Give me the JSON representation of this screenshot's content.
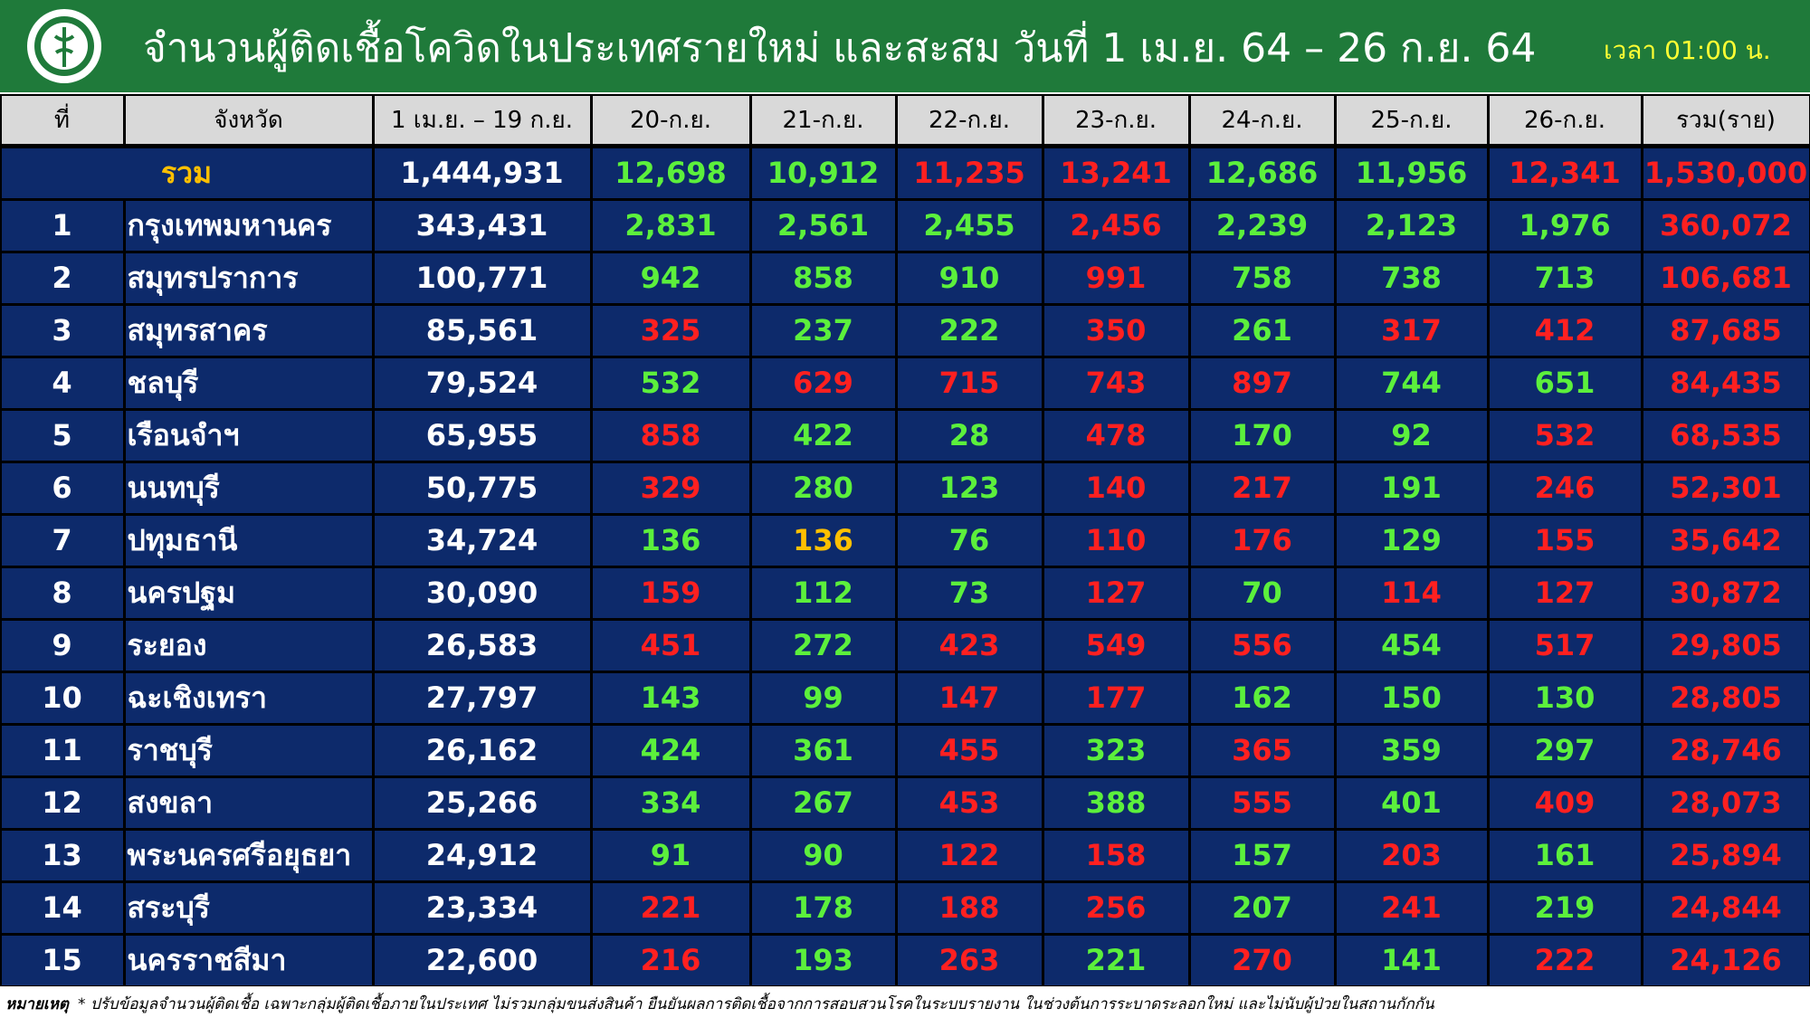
{
  "header": {
    "title": "จำนวนผู้ติดเชื้อโควิดในประเทศรายใหม่ และสะสม วันที่ 1 เม.ย. 64 – 26 ก.ย. 64",
    "time": "เวลา 01:00 น."
  },
  "table": {
    "columns": [
      "ที่",
      "จังหวัด",
      "1 เม.ย. – 19 ก.ย.",
      "20-ก.ย.",
      "21-ก.ย.",
      "22-ก.ย.",
      "23-ก.ย.",
      "24-ก.ย.",
      "25-ก.ย.",
      "26-ก.ย.",
      "รวม(ราย)"
    ],
    "total": {
      "label": "รวม",
      "cells": [
        "1,444,931",
        "12,698",
        "10,912",
        "11,235",
        "13,241",
        "12,686",
        "11,956",
        "12,341",
        "1,530,000"
      ],
      "colors": [
        "#ffffff",
        "#5cf03c",
        "#5cf03c",
        "#ff2020",
        "#ff2020",
        "#5cf03c",
        "#5cf03c",
        "#ff2020",
        "#ff2020"
      ]
    },
    "rows": [
      {
        "rank": 1,
        "province": "กรุงเทพมหานคร",
        "cells": [
          "343,431",
          "2,831",
          "2,561",
          "2,455",
          "2,456",
          "2,239",
          "2,123",
          "1,976",
          "360,072"
        ],
        "colors": [
          "#ffffff",
          "#5cf03c",
          "#5cf03c",
          "#5cf03c",
          "#ff2020",
          "#5cf03c",
          "#5cf03c",
          "#5cf03c",
          "#ff2020"
        ]
      },
      {
        "rank": 2,
        "province": "สมุทรปราการ",
        "cells": [
          "100,771",
          "942",
          "858",
          "910",
          "991",
          "758",
          "738",
          "713",
          "106,681"
        ],
        "colors": [
          "#ffffff",
          "#5cf03c",
          "#5cf03c",
          "#5cf03c",
          "#ff2020",
          "#5cf03c",
          "#5cf03c",
          "#5cf03c",
          "#ff2020"
        ]
      },
      {
        "rank": 3,
        "province": "สมุทรสาคร",
        "cells": [
          "85,561",
          "325",
          "237",
          "222",
          "350",
          "261",
          "317",
          "412",
          "87,685"
        ],
        "colors": [
          "#ffffff",
          "#ff2020",
          "#5cf03c",
          "#5cf03c",
          "#ff2020",
          "#5cf03c",
          "#ff2020",
          "#ff2020",
          "#ff2020"
        ]
      },
      {
        "rank": 4,
        "province": "ชลบุรี",
        "cells": [
          "79,524",
          "532",
          "629",
          "715",
          "743",
          "897",
          "744",
          "651",
          "84,435"
        ],
        "colors": [
          "#ffffff",
          "#5cf03c",
          "#ff2020",
          "#ff2020",
          "#ff2020",
          "#ff2020",
          "#5cf03c",
          "#5cf03c",
          "#ff2020"
        ]
      },
      {
        "rank": 5,
        "province": "เรือนจำฯ",
        "cells": [
          "65,955",
          "858",
          "422",
          "28",
          "478",
          "170",
          "92",
          "532",
          "68,535"
        ],
        "colors": [
          "#ffffff",
          "#ff2020",
          "#5cf03c",
          "#5cf03c",
          "#ff2020",
          "#5cf03c",
          "#5cf03c",
          "#ff2020",
          "#ff2020"
        ]
      },
      {
        "rank": 6,
        "province": "นนทบุรี",
        "cells": [
          "50,775",
          "329",
          "280",
          "123",
          "140",
          "217",
          "191",
          "246",
          "52,301"
        ],
        "colors": [
          "#ffffff",
          "#ff2020",
          "#5cf03c",
          "#5cf03c",
          "#ff2020",
          "#ff2020",
          "#5cf03c",
          "#ff2020",
          "#ff2020"
        ]
      },
      {
        "rank": 7,
        "province": "ปทุมธานี",
        "cells": [
          "34,724",
          "136",
          "136",
          "76",
          "110",
          "176",
          "129",
          "155",
          "35,642"
        ],
        "colors": [
          "#ffffff",
          "#5cf03c",
          "#ffc000",
          "#5cf03c",
          "#ff2020",
          "#ff2020",
          "#5cf03c",
          "#ff2020",
          "#ff2020"
        ]
      },
      {
        "rank": 8,
        "province": "นครปฐม",
        "cells": [
          "30,090",
          "159",
          "112",
          "73",
          "127",
          "70",
          "114",
          "127",
          "30,872"
        ],
        "colors": [
          "#ffffff",
          "#ff2020",
          "#5cf03c",
          "#5cf03c",
          "#ff2020",
          "#5cf03c",
          "#ff2020",
          "#ff2020",
          "#ff2020"
        ]
      },
      {
        "rank": 9,
        "province": "ระยอง",
        "cells": [
          "26,583",
          "451",
          "272",
          "423",
          "549",
          "556",
          "454",
          "517",
          "29,805"
        ],
        "colors": [
          "#ffffff",
          "#ff2020",
          "#5cf03c",
          "#ff2020",
          "#ff2020",
          "#ff2020",
          "#5cf03c",
          "#ff2020",
          "#ff2020"
        ]
      },
      {
        "rank": 10,
        "province": "ฉะเชิงเทรา",
        "cells": [
          "27,797",
          "143",
          "99",
          "147",
          "177",
          "162",
          "150",
          "130",
          "28,805"
        ],
        "colors": [
          "#ffffff",
          "#5cf03c",
          "#5cf03c",
          "#ff2020",
          "#ff2020",
          "#5cf03c",
          "#5cf03c",
          "#5cf03c",
          "#ff2020"
        ]
      },
      {
        "rank": 11,
        "province": "ราชบุรี",
        "cells": [
          "26,162",
          "424",
          "361",
          "455",
          "323",
          "365",
          "359",
          "297",
          "28,746"
        ],
        "colors": [
          "#ffffff",
          "#5cf03c",
          "#5cf03c",
          "#ff2020",
          "#5cf03c",
          "#ff2020",
          "#5cf03c",
          "#5cf03c",
          "#ff2020"
        ]
      },
      {
        "rank": 12,
        "province": "สงขลา",
        "cells": [
          "25,266",
          "334",
          "267",
          "453",
          "388",
          "555",
          "401",
          "409",
          "28,073"
        ],
        "colors": [
          "#ffffff",
          "#5cf03c",
          "#5cf03c",
          "#ff2020",
          "#5cf03c",
          "#ff2020",
          "#5cf03c",
          "#ff2020",
          "#ff2020"
        ]
      },
      {
        "rank": 13,
        "province": "พระนครศรีอยุธยา",
        "cells": [
          "24,912",
          "91",
          "90",
          "122",
          "158",
          "157",
          "203",
          "161",
          "25,894"
        ],
        "colors": [
          "#ffffff",
          "#5cf03c",
          "#5cf03c",
          "#ff2020",
          "#ff2020",
          "#5cf03c",
          "#ff2020",
          "#5cf03c",
          "#ff2020"
        ]
      },
      {
        "rank": 14,
        "province": "สระบุรี",
        "cells": [
          "23,334",
          "221",
          "178",
          "188",
          "256",
          "207",
          "241",
          "219",
          "24,844"
        ],
        "colors": [
          "#ffffff",
          "#ff2020",
          "#5cf03c",
          "#ff2020",
          "#ff2020",
          "#5cf03c",
          "#ff2020",
          "#5cf03c",
          "#ff2020"
        ]
      },
      {
        "rank": 15,
        "province": "นครราชสีมา",
        "cells": [
          "22,600",
          "216",
          "193",
          "263",
          "221",
          "270",
          "141",
          "222",
          "24,126"
        ],
        "colors": [
          "#ffffff",
          "#ff2020",
          "#5cf03c",
          "#ff2020",
          "#5cf03c",
          "#ff2020",
          "#5cf03c",
          "#ff2020",
          "#ff2020"
        ]
      }
    ]
  },
  "note": {
    "label": "หมายเหตุ",
    "text": "* ปรับข้อมูลจำนวนผู้ติดเชื้อ เฉพาะกลุ่มผู้ติดเชื้อภายในประเทศ ไม่รวมกลุ่มขนส่งสินค้า ยืนยันผลการติดเชื้อจากการสอบสวนโรคในระบบรายงาน ในช่วงต้นการระบาดระลอกใหม่ และไม่นับผู้ป่วยในสถานกักกัน"
  }
}
